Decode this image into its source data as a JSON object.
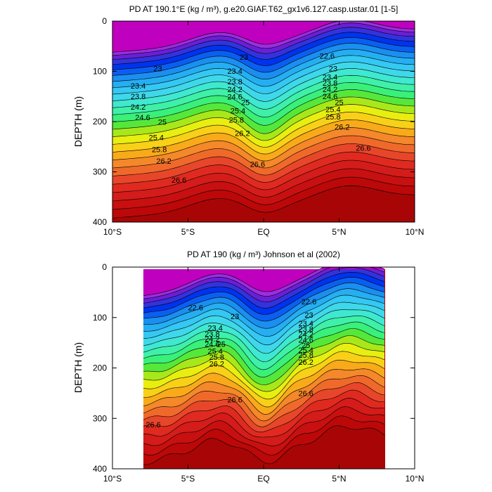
{
  "chart_data": [
    {
      "type": "contour",
      "title": "PD AT 190.1°E (kg / m³), g.e20.GIAF.T62_gx1v6.127.casp.ustar.01 [1-5]",
      "xlabel": "",
      "ylabel": "DEPTH (m)",
      "x_ticks": [
        "10°S",
        "5°S",
        "EQ",
        "5°N",
        "10°N"
      ],
      "x_tick_values": [
        -10,
        -5,
        0,
        5,
        10
      ],
      "xlim": [
        -10,
        10
      ],
      "y_ticks": [
        "0",
        "100",
        "200",
        "300",
        "400"
      ],
      "y_tick_values": [
        0,
        100,
        200,
        300,
        400
      ],
      "ylim": [
        400,
        0
      ],
      "data_extent_lat": [
        -10,
        10
      ],
      "contour_levels": [
        22.0,
        22.2,
        22.4,
        22.6,
        22.8,
        23.0,
        23.2,
        23.4,
        23.6,
        23.8,
        24.0,
        24.2,
        24.4,
        24.6,
        24.8,
        25.0,
        25.2,
        25.4,
        25.6,
        25.8,
        26.0,
        26.2,
        26.4,
        26.6,
        26.8
      ],
      "contour_labels": [
        {
          "text": "23",
          "lat": -7.0,
          "depth": 100
        },
        {
          "text": "23.4",
          "lat": -8.3,
          "depth": 134
        },
        {
          "text": "23.8",
          "lat": -8.3,
          "depth": 155
        },
        {
          "text": "24.2",
          "lat": -8.3,
          "depth": 176
        },
        {
          "text": "24.6",
          "lat": -8.0,
          "depth": 197
        },
        {
          "text": "25",
          "lat": -6.7,
          "depth": 206
        },
        {
          "text": "25.4",
          "lat": -7.1,
          "depth": 237
        },
        {
          "text": "25.8",
          "lat": -6.9,
          "depth": 261
        },
        {
          "text": "26.2",
          "lat": -6.6,
          "depth": 284
        },
        {
          "text": "26.6",
          "lat": -5.6,
          "depth": 322
        },
        {
          "text": "23",
          "lat": -1.3,
          "depth": 77
        },
        {
          "text": "23.4",
          "lat": -1.9,
          "depth": 105
        },
        {
          "text": "23.8",
          "lat": -1.9,
          "depth": 126
        },
        {
          "text": "24.2",
          "lat": -1.9,
          "depth": 141
        },
        {
          "text": "24.6",
          "lat": -1.9,
          "depth": 156
        },
        {
          "text": "25",
          "lat": -1.2,
          "depth": 167
        },
        {
          "text": "25.4",
          "lat": -1.7,
          "depth": 184
        },
        {
          "text": "25.8",
          "lat": -1.8,
          "depth": 202
        },
        {
          "text": "26.2",
          "lat": -1.4,
          "depth": 229
        },
        {
          "text": "26.6",
          "lat": -0.4,
          "depth": 290
        },
        {
          "text": "22.6",
          "lat": 4.2,
          "depth": 75
        },
        {
          "text": "23",
          "lat": 4.6,
          "depth": 100
        },
        {
          "text": "23.4",
          "lat": 4.4,
          "depth": 117
        },
        {
          "text": "23.8",
          "lat": 4.4,
          "depth": 129
        },
        {
          "text": "24.2",
          "lat": 4.4,
          "depth": 141
        },
        {
          "text": "24.6",
          "lat": 4.4,
          "depth": 155
        },
        {
          "text": "25",
          "lat": 5.0,
          "depth": 167
        },
        {
          "text": "25.4",
          "lat": 4.6,
          "depth": 181
        },
        {
          "text": "25.8",
          "lat": 4.6,
          "depth": 196
        },
        {
          "text": "26.2",
          "lat": 5.2,
          "depth": 216
        },
        {
          "text": "26.6",
          "lat": 6.6,
          "depth": 258
        }
      ]
    },
    {
      "type": "contour",
      "title": "PD AT 190 (kg / m³) Johnson et al (2002)",
      "xlabel": "",
      "ylabel": "DEPTH (m)",
      "x_ticks": [
        "10°S",
        "5°S",
        "EQ",
        "5°N",
        "10°N"
      ],
      "x_tick_values": [
        -10,
        -5,
        0,
        5,
        10
      ],
      "xlim": [
        -10,
        10
      ],
      "y_ticks": [
        "0",
        "100",
        "200",
        "300",
        "400"
      ],
      "y_tick_values": [
        0,
        100,
        200,
        300,
        400
      ],
      "ylim": [
        400,
        0
      ],
      "data_extent_lat": [
        -8,
        8
      ],
      "data_extent_depth": [
        5,
        400
      ],
      "contour_levels": [
        21.8,
        22.0,
        22.2,
        22.4,
        22.6,
        22.8,
        23.0,
        23.2,
        23.4,
        23.6,
        23.8,
        24.0,
        24.2,
        24.4,
        24.6,
        24.8,
        25.0,
        25.2,
        25.4,
        25.6,
        25.8,
        26.0,
        26.2,
        26.4,
        26.6,
        26.8
      ],
      "contour_labels": [
        {
          "text": "22.6",
          "lat": -4.5,
          "depth": 86
        },
        {
          "text": "23",
          "lat": -1.9,
          "depth": 103
        },
        {
          "text": "23.4",
          "lat": -3.2,
          "depth": 126
        },
        {
          "text": "23.8",
          "lat": -3.4,
          "depth": 138
        },
        {
          "text": "24.2",
          "lat": -3.4,
          "depth": 148
        },
        {
          "text": "24.6",
          "lat": -3.4,
          "depth": 158
        },
        {
          "text": "25",
          "lat": -2.8,
          "depth": 158
        },
        {
          "text": "25.4",
          "lat": -3.2,
          "depth": 172
        },
        {
          "text": "25.8",
          "lat": -3.1,
          "depth": 184
        },
        {
          "text": "26.2",
          "lat": -3.1,
          "depth": 197
        },
        {
          "text": "26.6",
          "lat": -1.9,
          "depth": 268
        },
        {
          "text": "26.6",
          "lat": -7.3,
          "depth": 318
        },
        {
          "text": "22.6",
          "lat": 3.0,
          "depth": 74
        },
        {
          "text": "23",
          "lat": 3.0,
          "depth": 100
        },
        {
          "text": "23.4",
          "lat": 2.8,
          "depth": 117
        },
        {
          "text": "23.8",
          "lat": 2.8,
          "depth": 128
        },
        {
          "text": "24.2",
          "lat": 2.8,
          "depth": 139
        },
        {
          "text": "24.6",
          "lat": 2.8,
          "depth": 150
        },
        {
          "text": "25",
          "lat": 2.8,
          "depth": 160
        },
        {
          "text": "25.4",
          "lat": 2.8,
          "depth": 170
        },
        {
          "text": "25.8",
          "lat": 2.8,
          "depth": 180
        },
        {
          "text": "26.2",
          "lat": 2.8,
          "depth": 194
        },
        {
          "text": "26.6",
          "lat": 2.8,
          "depth": 256
        }
      ]
    }
  ],
  "colors": {
    "background": "#ffffff",
    "axis": "#000000",
    "contour_line": "#000000",
    "palette": [
      "#bf00bf",
      "#9a2ee0",
      "#6a1fd6",
      "#3333dd",
      "#0033ee",
      "#0a5ff0",
      "#1a8ff0",
      "#26aef2",
      "#34c8f2",
      "#3fd8ea",
      "#3fe8d0",
      "#3ff0a8",
      "#3af07a",
      "#55e83a",
      "#a8e81a",
      "#e8ee10",
      "#f8d018",
      "#f8aa1a",
      "#f4882a",
      "#ef6a2a",
      "#e8462a",
      "#e02a20",
      "#d41c1a",
      "#c81010",
      "#bc0808",
      "#a80606"
    ]
  }
}
